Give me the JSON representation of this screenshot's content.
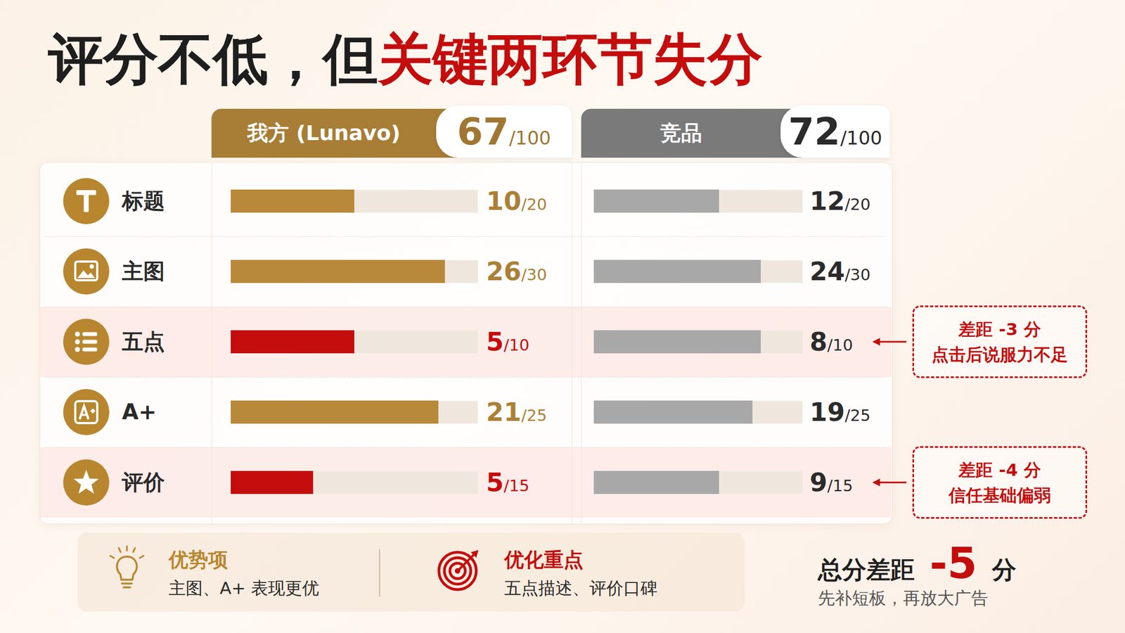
{
  "chart_data": {
    "type": "bar",
    "orientation": "horizontal",
    "title": "评分不低，但关键两环节失分",
    "title_highlight": "关键两环节失分",
    "categories": [
      "标题",
      "主图",
      "五点",
      "A+",
      "评价"
    ],
    "max_values": [
      20,
      30,
      10,
      25,
      15
    ],
    "max_labels": [
      "/20",
      "/30",
      "/10",
      "/25",
      "/15"
    ],
    "data_labels": true,
    "series": [
      {
        "name": "我方 (Lunavo)",
        "color": "#b8893a",
        "colors": [
          "#b8893a",
          "#b8893a",
          "#c40d0d",
          "#b8893a",
          "#c40d0d"
        ],
        "values": [
          10,
          26,
          5,
          21,
          5
        ],
        "total": 67,
        "total_label": "/100"
      },
      {
        "name": "竞品",
        "color": "#a8a8a8",
        "values": [
          12,
          24,
          8,
          19,
          9
        ],
        "total": 72,
        "total_label": "/100"
      }
    ],
    "annotations": [
      {
        "category": "五点",
        "lines": [
          "差距 -3 分",
          "点击后说服力不足"
        ]
      },
      {
        "category": "评价",
        "lines": [
          "差距 -4 分",
          "信任基础偏弱"
        ]
      }
    ],
    "summary": {
      "strengths": {
        "title": "优势项",
        "text": "主图、A+ 表现更优"
      },
      "focus": {
        "title": "优化重点",
        "text": "五点描述、评价口碑"
      },
      "total_gap": {
        "label": "总分差距",
        "value": -5,
        "unit": "分",
        "note": "先补短板，再放大广告"
      }
    }
  }
}
